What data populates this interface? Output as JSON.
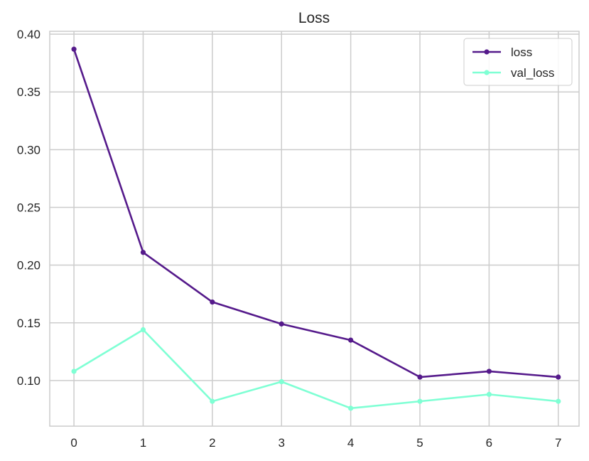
{
  "chart_data": {
    "type": "line",
    "title": "Loss",
    "xlabel": "",
    "ylabel": "",
    "x": [
      0,
      1,
      2,
      3,
      4,
      5,
      6,
      7
    ],
    "xlim": [
      -0.35,
      7.3
    ],
    "ylim": [
      0.0605,
      0.4025
    ],
    "xticks": [
      0,
      1,
      2,
      3,
      4,
      5,
      6,
      7
    ],
    "xtick_labels": [
      "0",
      "1",
      "2",
      "3",
      "4",
      "5",
      "6",
      "7"
    ],
    "yticks": [
      0.1,
      0.15,
      0.2,
      0.25,
      0.3,
      0.35,
      0.4
    ],
    "ytick_labels": [
      "0.10",
      "0.15",
      "0.20",
      "0.25",
      "0.30",
      "0.35",
      "0.40"
    ],
    "grid": true,
    "legend_position": "top-right",
    "series": [
      {
        "name": "loss",
        "color": "#551a8b",
        "values": [
          0.387,
          0.211,
          0.168,
          0.149,
          0.135,
          0.103,
          0.108,
          0.103
        ]
      },
      {
        "name": "val_loss",
        "color": "#7fffd4",
        "values": [
          0.108,
          0.144,
          0.082,
          0.099,
          0.076,
          0.082,
          0.088,
          0.082
        ]
      }
    ]
  }
}
